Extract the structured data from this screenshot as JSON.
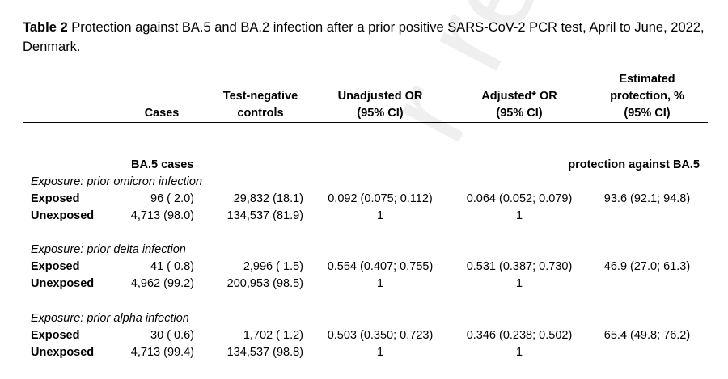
{
  "caption": {
    "label": "Table 2",
    "text": " Protection against BA.5 and BA.2 infection after a prior positive SARS-CoV-2 PCR test, April to June, 2022, Denmark."
  },
  "watermark": "r reviewed",
  "headers": {
    "cases": "Cases",
    "controls_1": "Test-negative",
    "controls_2": "controls",
    "unadj_1": "Unadjusted OR",
    "unadj_2": "(95% CI)",
    "adj_1": "Adjusted* OR",
    "adj_2": "(95% CI)",
    "prot_1": "Estimated",
    "prot_2": "protection, %",
    "prot_3": "(95% CI)"
  },
  "section": {
    "cases_label": "BA.5 cases",
    "protection_label": "protection against BA.5"
  },
  "groups": [
    {
      "exposure": "Exposure: prior omicron infection",
      "rows": [
        {
          "label": "Exposed",
          "cases": "96 ( 2.0)",
          "controls": "29,832 (18.1)",
          "unadj": "0.092 (0.075; 0.112)",
          "adj": "0.064 (0.052; 0.079)",
          "prot": "93.6 (92.1; 94.8)"
        },
        {
          "label": "Unexposed",
          "cases": "4,713 (98.0)",
          "controls": "134,537 (81.9)",
          "unadj": "1",
          "adj": "1",
          "prot": ""
        }
      ]
    },
    {
      "exposure": "Exposure: prior delta infection",
      "rows": [
        {
          "label": "Exposed",
          "cases": "41 ( 0.8)",
          "controls": "2,996 ( 1.5)",
          "unadj": "0.554 (0.407; 0.755)",
          "adj": "0.531 (0.387; 0.730)",
          "prot": "46.9 (27.0; 61.3)"
        },
        {
          "label": "Unexposed",
          "cases": "4,962 (99.2)",
          "controls": "200,953 (98.5)",
          "unadj": "1",
          "adj": "1",
          "prot": ""
        }
      ]
    },
    {
      "exposure": "Exposure: prior alpha infection",
      "rows": [
        {
          "label": "Exposed",
          "cases": "30 ( 0.6)",
          "controls": "1,702 ( 1.2)",
          "unadj": "0.503 (0.350; 0.723)",
          "adj": "0.346 (0.238; 0.502)",
          "prot": "65.4 (49.8; 76.2)"
        },
        {
          "label": "Unexposed",
          "cases": "4,713 (99.4)",
          "controls": "134,537 (98.8)",
          "unadj": "1",
          "adj": "1",
          "prot": ""
        }
      ]
    }
  ]
}
